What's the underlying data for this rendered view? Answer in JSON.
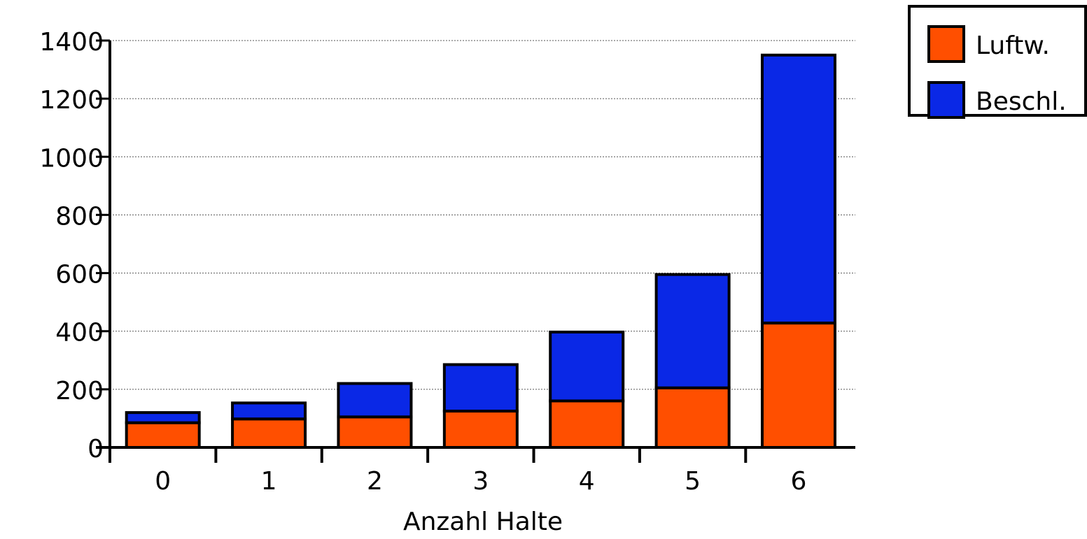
{
  "chart_data": {
    "type": "stacked_bar",
    "x_label": "Anzahl Halte",
    "categories": [
      "0",
      "1",
      "2",
      "3",
      "4",
      "5",
      "6"
    ],
    "series": [
      {
        "name": "Luftw.",
        "color": "#ff4f00",
        "values": [
          85,
          98,
          105,
          125,
          160,
          205,
          428
        ]
      },
      {
        "name": "Beschl.",
        "color": "#0a28e6",
        "values": [
          35,
          55,
          115,
          160,
          237,
          390,
          922
        ]
      }
    ],
    "ylim": [
      0,
      1400
    ],
    "yticks": [
      0,
      200,
      400,
      600,
      800,
      1000,
      1200,
      1400
    ],
    "grid": true,
    "legend": "top-right"
  }
}
